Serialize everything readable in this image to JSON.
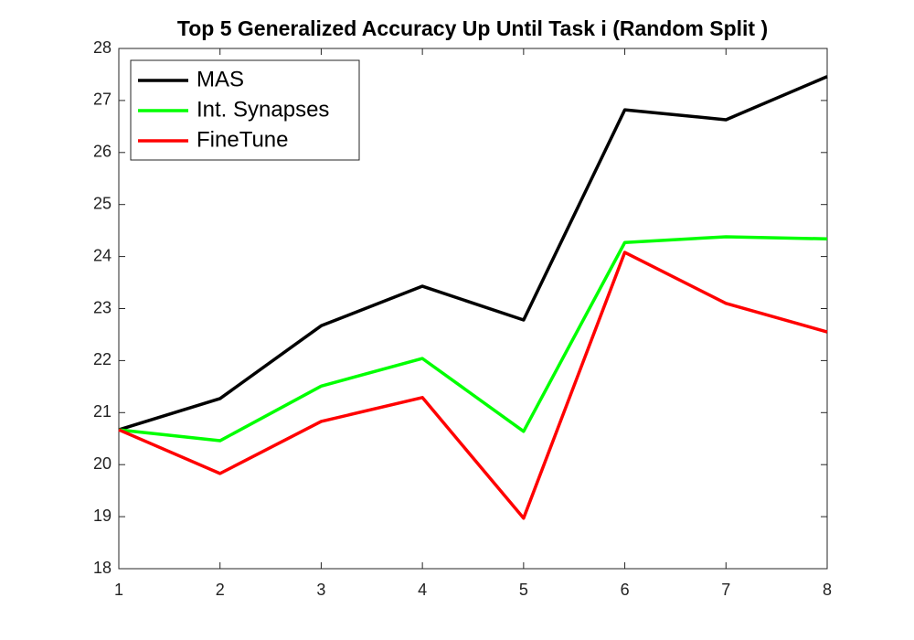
{
  "chart_data": {
    "type": "line",
    "title": "Top 5 Generalized Accuracy Up Until Task i (Random Split )",
    "x": [
      1,
      2,
      3,
      4,
      5,
      6,
      7,
      8
    ],
    "series": [
      {
        "name": "MAS",
        "color": "#000000",
        "values": [
          20.67,
          21.27,
          22.67,
          23.43,
          22.78,
          26.82,
          26.63,
          27.46
        ]
      },
      {
        "name": "Int. Synapses",
        "color": "#00ff00",
        "values": [
          20.67,
          20.46,
          21.51,
          22.04,
          20.64,
          24.27,
          24.38,
          24.34
        ]
      },
      {
        "name": "FineTune",
        "color": "#ff0000",
        "values": [
          20.67,
          19.83,
          20.83,
          21.29,
          18.97,
          24.08,
          23.1,
          22.55
        ]
      }
    ],
    "xlim": [
      1,
      8
    ],
    "xticks": [
      1,
      2,
      3,
      4,
      5,
      6,
      7,
      8
    ],
    "ylim": [
      18,
      28
    ],
    "yticks": [
      18,
      19,
      20,
      21,
      22,
      23,
      24,
      25,
      26,
      27,
      28
    ],
    "legend": "upper-left",
    "grid": false
  }
}
